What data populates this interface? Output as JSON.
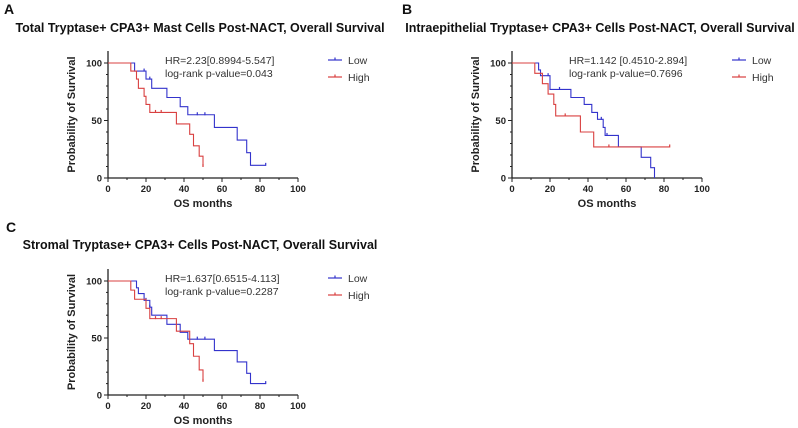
{
  "colors": {
    "low": "#3333cc",
    "high": "#d94040",
    "axis": "#222222"
  },
  "chart_data": [
    {
      "type": "line",
      "panel_label": "A",
      "title": "Total Tryptase+ CPA3+ Mast Cells Post-NACT, Overall Survival",
      "xlabel": "OS months",
      "ylabel": "Probability of Survival",
      "xlim": [
        0,
        100
      ],
      "ylim": [
        0,
        100
      ],
      "xticks": [
        "0",
        "20",
        "40",
        "60",
        "80",
        "100"
      ],
      "yticks": [
        "0",
        "50",
        "100"
      ],
      "stats": [
        "HR=2.23[0.8994-5.547]",
        "log-rank p-value=0.043"
      ],
      "legend_position": "top-right",
      "series": [
        {
          "name": "Low",
          "steps": [
            [
              0,
              100
            ],
            [
              14,
              93
            ],
            [
              20,
              86
            ],
            [
              23,
              78
            ],
            [
              31,
              70
            ],
            [
              38,
              62
            ],
            [
              42,
              55
            ],
            [
              56,
              44
            ],
            [
              68,
              33
            ],
            [
              73,
              22
            ],
            [
              75,
              11
            ],
            [
              83,
              11
            ]
          ],
          "censors": [
            [
              19,
              93
            ],
            [
              22,
              86
            ],
            [
              47,
              55
            ],
            [
              51,
              55
            ],
            [
              83,
              11
            ]
          ]
        },
        {
          "name": "High",
          "steps": [
            [
              0,
              100
            ],
            [
              12,
              93
            ],
            [
              15,
              86
            ],
            [
              16,
              78
            ],
            [
              19,
              71
            ],
            [
              20,
              64
            ],
            [
              22,
              57
            ],
            [
              36,
              47
            ],
            [
              43,
              38
            ],
            [
              45,
              28
            ],
            [
              48,
              19
            ],
            [
              50,
              10
            ]
          ],
          "censors": [
            [
              25,
              57
            ],
            [
              28,
              57
            ],
            [
              50,
              10
            ]
          ]
        }
      ]
    },
    {
      "type": "line",
      "panel_label": "B",
      "title": "Intraepithelial Tryptase+ CPA3+ Cells Post-NACT, Overall Survival",
      "xlabel": "OS months",
      "ylabel": "Probability of Survival",
      "xlim": [
        0,
        100
      ],
      "ylim": [
        0,
        100
      ],
      "xticks": [
        "0",
        "20",
        "40",
        "60",
        "80",
        "100"
      ],
      "yticks": [
        "0",
        "50",
        "100"
      ],
      "stats": [
        "HR=1.142 [0.4510-2.894]",
        "log-rank p-value=0.7696"
      ],
      "legend_position": "top-right",
      "series": [
        {
          "name": "Low",
          "steps": [
            [
              0,
              100
            ],
            [
              14,
              94
            ],
            [
              15,
              89
            ],
            [
              20,
              77
            ],
            [
              31,
              70
            ],
            [
              38,
              64
            ],
            [
              42,
              57
            ],
            [
              45,
              51
            ],
            [
              48,
              44
            ],
            [
              49,
              37
            ],
            [
              56,
              27
            ],
            [
              68,
              18
            ],
            [
              73,
              9
            ],
            [
              75,
              0
            ]
          ],
          "censors": [
            [
              19,
              89
            ],
            [
              25,
              77
            ],
            [
              47,
              51
            ],
            [
              50,
              37
            ]
          ]
        },
        {
          "name": "High",
          "steps": [
            [
              0,
              100
            ],
            [
              12,
              91
            ],
            [
              16,
              82
            ],
            [
              19,
              73
            ],
            [
              22,
              64
            ],
            [
              23,
              54
            ],
            [
              36,
              40
            ],
            [
              43,
              27
            ],
            [
              83,
              27
            ]
          ],
          "censors": [
            [
              28,
              54
            ],
            [
              51,
              27
            ],
            [
              83,
              27
            ]
          ]
        }
      ]
    },
    {
      "type": "line",
      "panel_label": "C",
      "title": "Stromal Tryptase+ CPA3+ Cells Post-NACT, Overall Survival",
      "xlabel": "OS months",
      "ylabel": "Probability of Survival",
      "xlim": [
        0,
        100
      ],
      "ylim": [
        0,
        100
      ],
      "xticks": [
        "0",
        "20",
        "40",
        "60",
        "80",
        "100"
      ],
      "yticks": [
        "0",
        "50",
        "100"
      ],
      "stats": [
        "HR=1.637[0.6515-4.113]",
        "log-rank p-value=0.2287"
      ],
      "legend_position": "top-right",
      "series": [
        {
          "name": "Low",
          "steps": [
            [
              0,
              100
            ],
            [
              15,
              94
            ],
            [
              16,
              89
            ],
            [
              19,
              83
            ],
            [
              22,
              77
            ],
            [
              23,
              70
            ],
            [
              31,
              62
            ],
            [
              38,
              55
            ],
            [
              42,
              49
            ],
            [
              56,
              39
            ],
            [
              68,
              29
            ],
            [
              73,
              19
            ],
            [
              75,
              10
            ],
            [
              83,
              10
            ]
          ],
          "censors": [
            [
              20,
              83
            ],
            [
              22,
              77
            ],
            [
              47,
              49
            ],
            [
              51,
              49
            ],
            [
              83,
              10
            ]
          ]
        },
        {
          "name": "High",
          "steps": [
            [
              0,
              100
            ],
            [
              12,
              92
            ],
            [
              14,
              84
            ],
            [
              20,
              76
            ],
            [
              22,
              67
            ],
            [
              36,
              56
            ],
            [
              43,
              45
            ],
            [
              45,
              34
            ],
            [
              48,
              22
            ],
            [
              50,
              12
            ]
          ],
          "censors": [
            [
              25,
              67
            ],
            [
              28,
              67
            ],
            [
              50,
              12
            ]
          ]
        }
      ]
    }
  ]
}
